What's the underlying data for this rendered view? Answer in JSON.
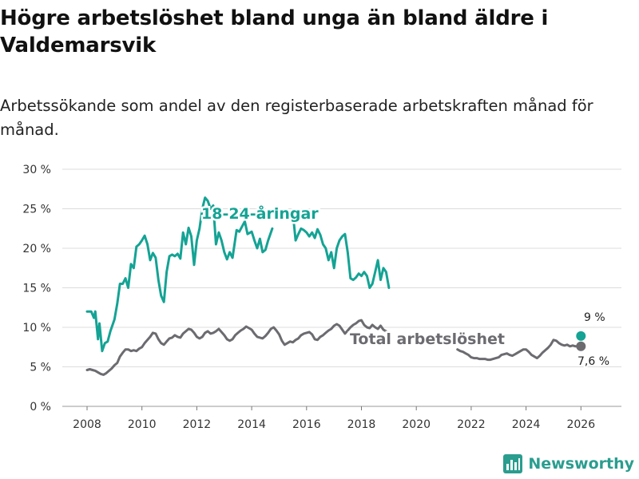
{
  "title": "Högre arbetslöshet bland unga än bland äldre i Valdemarsvik",
  "subtitle": "Arbetssökande som andel av den registerbaserade arbetskraften månad för månad.",
  "brand": {
    "name": "Newsworthy",
    "logo_icon": "bar-chart-logo-icon"
  },
  "chart_data": {
    "type": "line",
    "title": "Högre arbetslöshet bland unga än bland äldre i Valdemarsvik",
    "xlabel": "",
    "ylabel": "",
    "xlim": [
      2007.6,
      2026.5
    ],
    "ylim": [
      0,
      30
    ],
    "x_ticks": [
      2008,
      2010,
      2012,
      2014,
      2016,
      2018,
      2020,
      2022,
      2024,
      2026
    ],
    "y_ticks": [
      0,
      5,
      10,
      15,
      20,
      25,
      30
    ],
    "y_tick_labels": [
      "0 %",
      "5 %",
      "10 %",
      "15 %",
      "20 %",
      "25 %",
      "30 %"
    ],
    "grid": "horizontal",
    "series": [
      {
        "name": "18-24-åringar",
        "color": "#14a394",
        "label": "18-24-åringar",
        "end_label": "9 %",
        "points": [
          [
            2008.0,
            12.0
          ],
          [
            2008.15,
            12.0
          ],
          [
            2008.25,
            11.2
          ],
          [
            2008.3,
            12.0
          ],
          [
            2008.4,
            8.5
          ],
          [
            2008.45,
            10.5
          ],
          [
            2008.55,
            7.0
          ],
          [
            2008.65,
            8.0
          ],
          [
            2008.75,
            8.2
          ],
          [
            2008.85,
            9.5
          ],
          [
            2009.0,
            11.0
          ],
          [
            2009.1,
            13.0
          ],
          [
            2009.2,
            15.5
          ],
          [
            2009.3,
            15.5
          ],
          [
            2009.4,
            16.2
          ],
          [
            2009.5,
            15.0
          ],
          [
            2009.6,
            18.0
          ],
          [
            2009.7,
            17.5
          ],
          [
            2009.8,
            20.2
          ],
          [
            2009.9,
            20.5
          ],
          [
            2010.0,
            21.0
          ],
          [
            2010.1,
            21.6
          ],
          [
            2010.2,
            20.5
          ],
          [
            2010.3,
            18.5
          ],
          [
            2010.4,
            19.4
          ],
          [
            2010.5,
            18.8
          ],
          [
            2010.6,
            16.0
          ],
          [
            2010.7,
            14.0
          ],
          [
            2010.8,
            13.2
          ],
          [
            2010.9,
            17.0
          ],
          [
            2011.0,
            19.0
          ],
          [
            2011.1,
            19.2
          ],
          [
            2011.2,
            19.0
          ],
          [
            2011.3,
            19.3
          ],
          [
            2011.4,
            18.7
          ],
          [
            2011.5,
            22.0
          ],
          [
            2011.6,
            20.5
          ],
          [
            2011.7,
            22.6
          ],
          [
            2011.8,
            21.5
          ],
          [
            2011.9,
            17.9
          ],
          [
            2012.0,
            21.0
          ],
          [
            2012.1,
            22.5
          ],
          [
            2012.2,
            25.0
          ],
          [
            2012.3,
            26.4
          ],
          [
            2012.4,
            26.0
          ],
          [
            2012.5,
            25.0
          ],
          [
            2012.6,
            25.4
          ],
          [
            2012.7,
            20.5
          ],
          [
            2012.8,
            22.0
          ],
          [
            2012.9,
            21.0
          ],
          [
            2013.0,
            19.5
          ],
          [
            2013.1,
            18.6
          ],
          [
            2013.2,
            19.5
          ],
          [
            2013.3,
            18.8
          ],
          [
            2013.45,
            22.3
          ],
          [
            2013.55,
            22.1
          ],
          [
            2013.75,
            23.4
          ],
          [
            2013.85,
            21.8
          ],
          [
            2014.0,
            22.1
          ],
          [
            2014.1,
            21.0
          ],
          [
            2014.2,
            20.0
          ],
          [
            2014.3,
            21.2
          ],
          [
            2014.4,
            19.5
          ],
          [
            2014.5,
            19.8
          ],
          [
            2014.6,
            21.0
          ],
          [
            2014.75,
            22.5
          ]
        ],
        "points_b": [
          [
            2015.5,
            24.5
          ],
          [
            2015.6,
            21.0
          ],
          [
            2015.7,
            21.8
          ],
          [
            2015.8,
            22.5
          ],
          [
            2015.9,
            22.3
          ],
          [
            2016.0,
            22.0
          ],
          [
            2016.1,
            21.5
          ],
          [
            2016.2,
            22.0
          ],
          [
            2016.3,
            21.3
          ],
          [
            2016.4,
            22.4
          ],
          [
            2016.5,
            21.7
          ],
          [
            2016.6,
            20.5
          ],
          [
            2016.7,
            20.0
          ],
          [
            2016.8,
            18.5
          ],
          [
            2016.9,
            19.5
          ],
          [
            2017.0,
            17.5
          ],
          [
            2017.1,
            20.0
          ],
          [
            2017.2,
            21.0
          ],
          [
            2017.3,
            21.5
          ],
          [
            2017.4,
            21.8
          ],
          [
            2017.5,
            19.5
          ],
          [
            2017.6,
            16.2
          ],
          [
            2017.7,
            16.0
          ],
          [
            2017.8,
            16.3
          ],
          [
            2017.9,
            16.8
          ],
          [
            2018.0,
            16.5
          ],
          [
            2018.1,
            17.0
          ],
          [
            2018.2,
            16.5
          ],
          [
            2018.3,
            15.0
          ],
          [
            2018.4,
            15.5
          ],
          [
            2018.5,
            17.0
          ],
          [
            2018.6,
            18.5
          ],
          [
            2018.7,
            16.0
          ],
          [
            2018.8,
            17.5
          ],
          [
            2018.9,
            17.0
          ],
          [
            2019.0,
            15.0
          ]
        ]
      },
      {
        "name": "Total arbetslöshet",
        "color": "#6b6b70",
        "label": "Total arbetslöshet",
        "end_label": "7,6 %",
        "points": [
          [
            2008.0,
            4.6
          ],
          [
            2008.1,
            4.7
          ],
          [
            2008.2,
            4.6
          ],
          [
            2008.3,
            4.5
          ],
          [
            2008.4,
            4.3
          ],
          [
            2008.5,
            4.1
          ],
          [
            2008.6,
            4.0
          ],
          [
            2008.7,
            4.2
          ],
          [
            2008.8,
            4.5
          ],
          [
            2008.9,
            4.8
          ],
          [
            2009.0,
            5.2
          ],
          [
            2009.1,
            5.5
          ],
          [
            2009.2,
            6.3
          ],
          [
            2009.3,
            6.8
          ],
          [
            2009.4,
            7.2
          ],
          [
            2009.5,
            7.2
          ],
          [
            2009.6,
            7.0
          ],
          [
            2009.7,
            7.1
          ],
          [
            2009.8,
            7.0
          ],
          [
            2009.9,
            7.3
          ],
          [
            2010.0,
            7.5
          ],
          [
            2010.1,
            8.0
          ],
          [
            2010.2,
            8.4
          ],
          [
            2010.3,
            8.8
          ],
          [
            2010.4,
            9.3
          ],
          [
            2010.5,
            9.2
          ],
          [
            2010.6,
            8.5
          ],
          [
            2010.7,
            8.0
          ],
          [
            2010.8,
            7.8
          ],
          [
            2010.9,
            8.2
          ],
          [
            2011.0,
            8.6
          ],
          [
            2011.1,
            8.7
          ],
          [
            2011.2,
            9.0
          ],
          [
            2011.3,
            8.8
          ],
          [
            2011.4,
            8.7
          ],
          [
            2011.5,
            9.2
          ],
          [
            2011.6,
            9.5
          ],
          [
            2011.7,
            9.8
          ],
          [
            2011.8,
            9.7
          ],
          [
            2011.9,
            9.3
          ],
          [
            2012.0,
            8.8
          ],
          [
            2012.1,
            8.6
          ],
          [
            2012.2,
            8.8
          ],
          [
            2012.3,
            9.3
          ],
          [
            2012.4,
            9.5
          ],
          [
            2012.5,
            9.2
          ],
          [
            2012.6,
            9.3
          ],
          [
            2012.7,
            9.5
          ],
          [
            2012.8,
            9.8
          ],
          [
            2012.9,
            9.4
          ],
          [
            2013.0,
            9.0
          ],
          [
            2013.1,
            8.5
          ],
          [
            2013.2,
            8.3
          ],
          [
            2013.3,
            8.5
          ],
          [
            2013.4,
            9.0
          ],
          [
            2013.5,
            9.3
          ],
          [
            2013.6,
            9.6
          ],
          [
            2013.7,
            9.8
          ],
          [
            2013.8,
            10.1
          ],
          [
            2013.9,
            9.9
          ],
          [
            2014.0,
            9.7
          ],
          [
            2014.1,
            9.2
          ],
          [
            2014.2,
            8.8
          ],
          [
            2014.3,
            8.7
          ],
          [
            2014.4,
            8.6
          ],
          [
            2014.5,
            8.9
          ],
          [
            2014.6,
            9.3
          ],
          [
            2014.7,
            9.8
          ],
          [
            2014.8,
            10.0
          ],
          [
            2014.9,
            9.6
          ],
          [
            2015.0,
            9.1
          ],
          [
            2015.1,
            8.3
          ],
          [
            2015.2,
            7.8
          ],
          [
            2015.3,
            8.0
          ],
          [
            2015.4,
            8.2
          ],
          [
            2015.5,
            8.1
          ],
          [
            2015.6,
            8.4
          ],
          [
            2015.7,
            8.6
          ],
          [
            2015.8,
            9.0
          ],
          [
            2015.9,
            9.2
          ],
          [
            2016.0,
            9.3
          ],
          [
            2016.1,
            9.4
          ],
          [
            2016.2,
            9.1
          ],
          [
            2016.3,
            8.5
          ],
          [
            2016.4,
            8.4
          ],
          [
            2016.5,
            8.8
          ],
          [
            2016.6,
            9.0
          ],
          [
            2016.7,
            9.3
          ],
          [
            2016.8,
            9.6
          ],
          [
            2016.9,
            9.8
          ],
          [
            2017.0,
            10.2
          ],
          [
            2017.1,
            10.4
          ],
          [
            2017.2,
            10.2
          ],
          [
            2017.3,
            9.7
          ],
          [
            2017.4,
            9.2
          ],
          [
            2017.5,
            9.6
          ],
          [
            2017.6,
            10.0
          ],
          [
            2017.7,
            10.3
          ],
          [
            2017.8,
            10.5
          ],
          [
            2017.9,
            10.8
          ],
          [
            2018.0,
            10.9
          ],
          [
            2018.1,
            10.3
          ],
          [
            2018.2,
            10.0
          ],
          [
            2018.3,
            9.9
          ],
          [
            2018.4,
            10.3
          ],
          [
            2018.5,
            10.0
          ],
          [
            2018.6,
            9.8
          ],
          [
            2018.7,
            10.2
          ],
          [
            2018.8,
            9.7
          ],
          [
            2018.9,
            9.5
          ]
        ],
        "points_b": [
          [
            2021.5,
            7.2
          ],
          [
            2021.6,
            7.0
          ],
          [
            2021.7,
            6.9
          ],
          [
            2021.8,
            6.7
          ],
          [
            2021.9,
            6.5
          ],
          [
            2022.0,
            6.2
          ],
          [
            2022.1,
            6.1
          ],
          [
            2022.2,
            6.1
          ],
          [
            2022.3,
            6.0
          ],
          [
            2022.4,
            6.0
          ],
          [
            2022.5,
            6.0
          ],
          [
            2022.6,
            5.9
          ],
          [
            2022.7,
            5.9
          ],
          [
            2022.8,
            6.0
          ],
          [
            2022.9,
            6.1
          ],
          [
            2023.0,
            6.2
          ],
          [
            2023.1,
            6.5
          ],
          [
            2023.2,
            6.6
          ],
          [
            2023.3,
            6.7
          ],
          [
            2023.4,
            6.5
          ],
          [
            2023.5,
            6.4
          ],
          [
            2023.6,
            6.6
          ],
          [
            2023.7,
            6.8
          ],
          [
            2023.8,
            7.0
          ],
          [
            2023.9,
            7.2
          ],
          [
            2024.0,
            7.2
          ],
          [
            2024.1,
            6.9
          ],
          [
            2024.2,
            6.5
          ],
          [
            2024.3,
            6.3
          ],
          [
            2024.4,
            6.1
          ],
          [
            2024.5,
            6.4
          ],
          [
            2024.6,
            6.8
          ],
          [
            2024.7,
            7.1
          ],
          [
            2024.8,
            7.4
          ],
          [
            2024.9,
            7.8
          ],
          [
            2025.0,
            8.4
          ],
          [
            2025.1,
            8.3
          ],
          [
            2025.2,
            8.0
          ],
          [
            2025.3,
            7.8
          ],
          [
            2025.4,
            7.7
          ],
          [
            2025.5,
            7.8
          ],
          [
            2025.6,
            7.6
          ],
          [
            2025.7,
            7.7
          ],
          [
            2025.8,
            7.6
          ],
          [
            2025.9,
            7.6
          ],
          [
            2026.0,
            7.6
          ]
        ]
      }
    ]
  }
}
